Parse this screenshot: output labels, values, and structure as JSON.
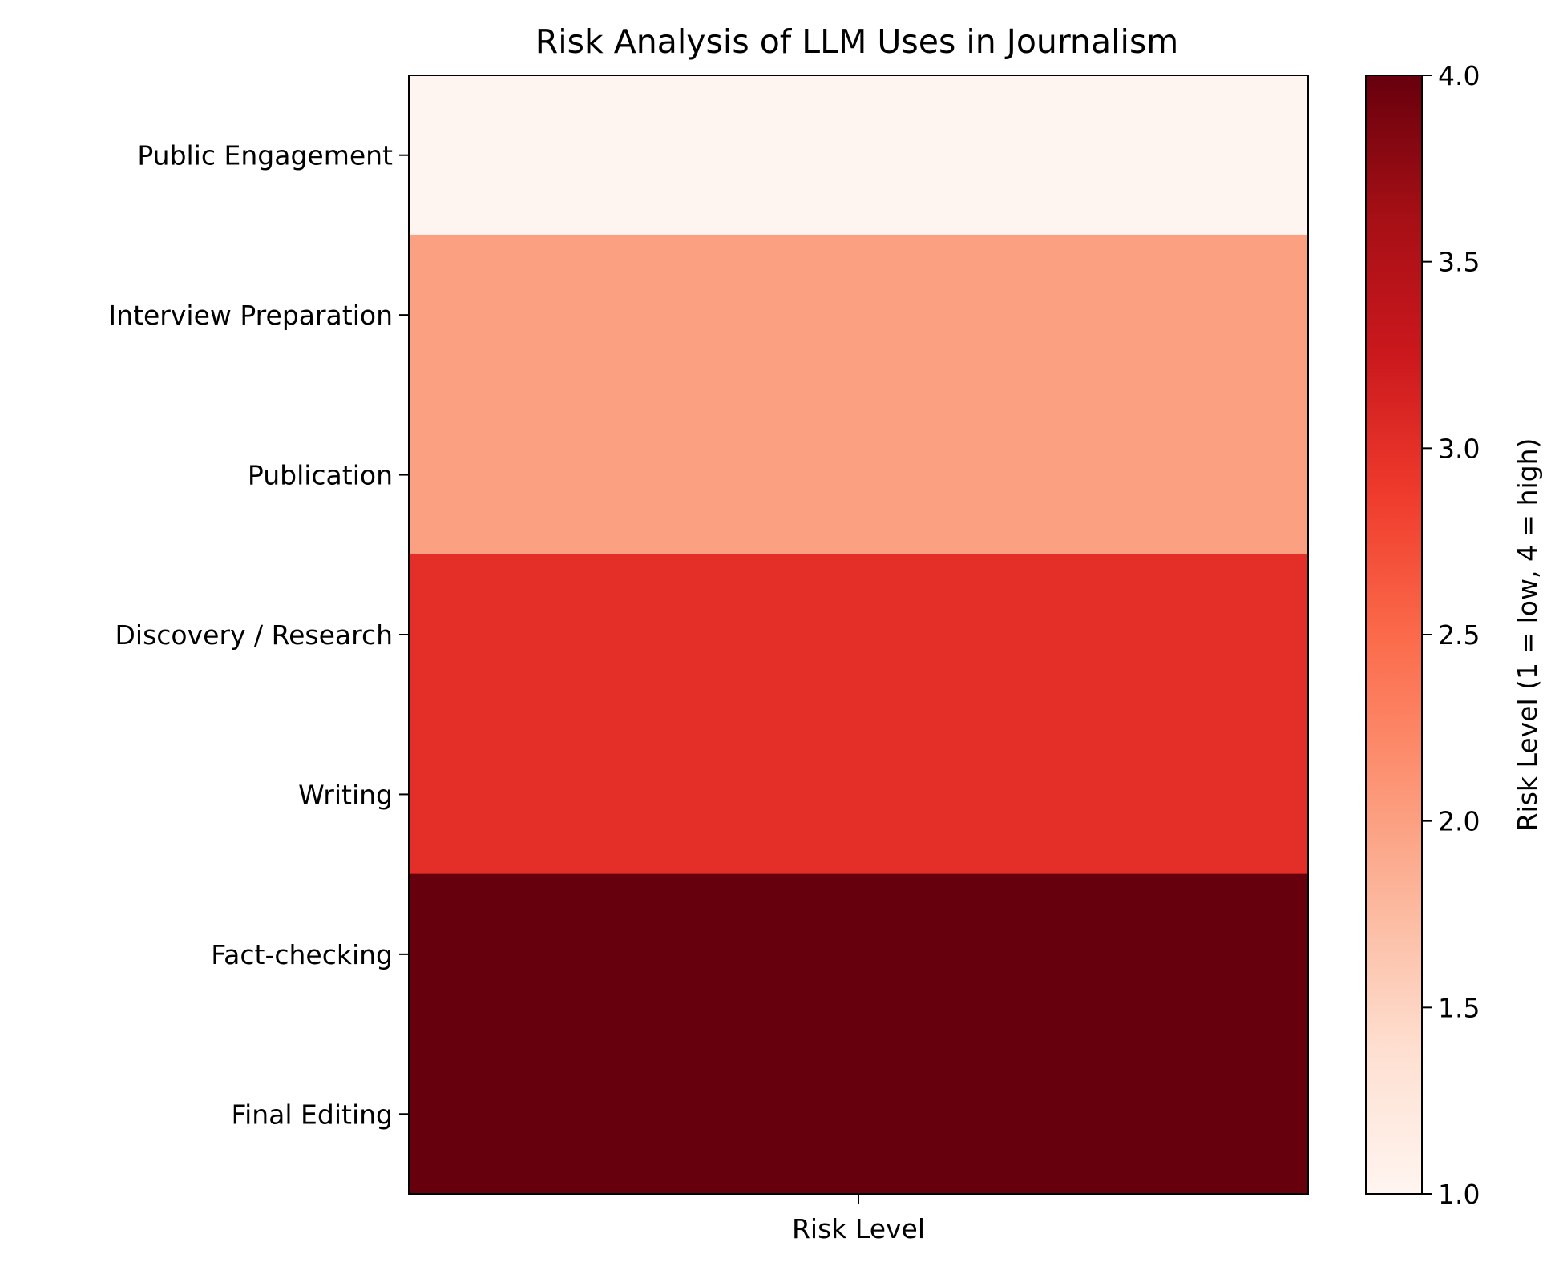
{
  "chart_data": {
    "type": "heatmap",
    "title": "Risk Analysis of LLM Uses in Journalism",
    "xlabel": "",
    "ylabel": "",
    "x_categories": [
      "Risk Level"
    ],
    "y_categories": [
      "Public Engagement",
      "Interview Preparation",
      "Publication",
      "Discovery / Research",
      "Writing",
      "Fact-checking",
      "Final Editing"
    ],
    "values": [
      1,
      2,
      2,
      3,
      3,
      4,
      4
    ],
    "colorbar": {
      "label": "Risk Level (1 = low, 4 = high)",
      "range": [
        1,
        4
      ],
      "ticks": [
        "1.0",
        "1.5",
        "2.0",
        "2.5",
        "3.0",
        "3.5",
        "4.0"
      ],
      "colormap": "Reds",
      "colors": [
        "#fff5f0",
        "#fee0d2",
        "#fcbba1",
        "#fc9272",
        "#fb6a4a",
        "#ef3b2c",
        "#cb181d",
        "#a50f15",
        "#67000d"
      ]
    },
    "legend": "none",
    "grid": false
  }
}
